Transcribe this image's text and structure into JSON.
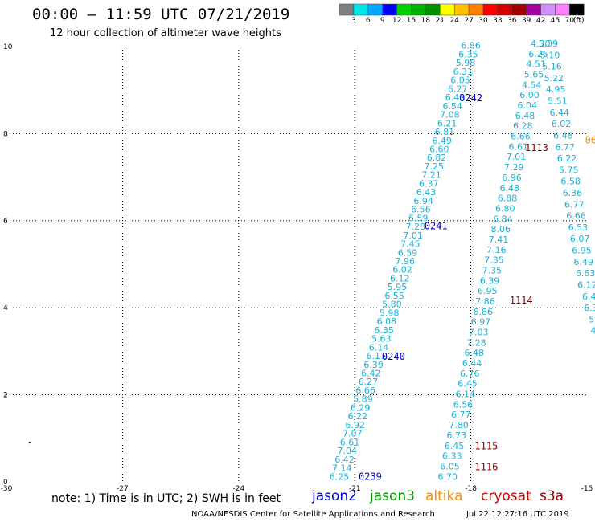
{
  "header": {
    "title": "00:00 – 11:59 UTC 07/21/2019",
    "subtitle": "12 hour collection of altimeter wave heights"
  },
  "colorbar": {
    "colors": [
      "#7f7f7f",
      "#00e6e6",
      "#00a6ff",
      "#0000ff",
      "#00d000",
      "#00b000",
      "#008f00",
      "#ffff00",
      "#ffc000",
      "#ff8000",
      "#ff0000",
      "#d00000",
      "#a00000",
      "#a000a0",
      "#d090ff",
      "#ff80ff",
      "#000000"
    ],
    "labels": [
      "3",
      "6",
      "9",
      "12",
      "15",
      "18",
      "21",
      "24",
      "27",
      "30",
      "33",
      "36",
      "39",
      "42",
      "45",
      "70"
    ],
    "unit": "(ft)"
  },
  "footer": {
    "note": "note: 1) Time is in UTC; 2) SWH is in feet",
    "satellites": [
      {
        "name": "jason2",
        "color": "#0000c8"
      },
      {
        "name": "jason3",
        "color": "#009600"
      },
      {
        "name": "altika",
        "color": "#ff8c00"
      },
      {
        "name": "cryosat",
        "color": "#c80000"
      },
      {
        "name": "s3a",
        "color": "#8b0000"
      }
    ],
    "credit": "NOAA/NESDIS Center for Satellite Applications and Research",
    "timestamp": "Jul 22 12:27:16 UTC 2019"
  },
  "chart_data": {
    "type": "scatter",
    "xlim": [
      -30,
      -15
    ],
    "ylim": [
      0,
      10
    ],
    "x_ticks": [
      "-30",
      "-27",
      "-24",
      "-21",
      "-18",
      "-15"
    ],
    "y_ticks": [
      "0",
      "2",
      "4",
      "6",
      "8",
      "10"
    ],
    "grid": true,
    "point_color": "#1ab0d8",
    "tracks": [
      {
        "start": [
          -21.4,
          0.05
        ],
        "end": [
          -18.0,
          9.95
        ],
        "values": [
          "6.25",
          "7.14",
          "6.42",
          "7.04",
          "6.61",
          "7.07",
          "6.92",
          "6.22",
          "6.29",
          "5.89",
          "6.66",
          "6.27",
          "6.42",
          "6.39",
          "6.11",
          "6.14",
          "5.63",
          "6.35",
          "6.08",
          "5.98",
          "5.80",
          "6.55",
          "5.95",
          "6.12",
          "6.02",
          "7.96",
          "6.59",
          "7.45",
          "7.01",
          "7.28",
          "6.59",
          "6.56",
          "6.94",
          "6.43",
          "6.37",
          "7.21",
          "7.25",
          "6.82",
          "6.60",
          "6.49",
          "6.81",
          "6.21",
          "7.08",
          "6.54",
          "6.43",
          "6.27",
          "6.05",
          "6.31",
          "5.98",
          "6.35",
          "6.86"
        ]
      },
      {
        "start": [
          -18.6,
          0.05
        ],
        "end": [
          -16.2,
          10.0
        ],
        "values": [
          "6.70",
          "6.05",
          "6.33",
          "6.45",
          "6.73",
          "7.80",
          "6.77",
          "6.56",
          "6.14",
          "6.45",
          "6.76",
          "6.44",
          "6.48",
          "7.28",
          "7.03",
          "6.97",
          "6.86",
          "7.86",
          "6.95",
          "6.39",
          "7.35",
          "7.35",
          "7.16",
          "7.41",
          "8.06",
          "6.84",
          "6.80",
          "6.88",
          "6.48",
          "6.96",
          "7.29",
          "7.01",
          "6.61",
          "6.66",
          "6.28",
          "6.48",
          "6.04",
          "6.00",
          "4.54",
          "5.65",
          "4.51",
          "6.25",
          "4.30"
        ]
      },
      {
        "start": [
          -16.0,
          10.0
        ],
        "end": [
          -14.8,
          3.4
        ],
        "values": [
          "5.09",
          "5.10",
          "5.16",
          "5.22",
          "4.95",
          "5.51",
          "6.44",
          "6.02",
          "6.48",
          "6.77",
          "6.22",
          "5.75",
          "6.58",
          "6.36",
          "6.77",
          "6.66",
          "6.53",
          "6.07",
          "6.95",
          "6.49",
          "6.63",
          "6.12",
          "6.4",
          "6.3",
          "5.",
          "4."
        ]
      }
    ],
    "pass_labels": [
      {
        "text": "0239",
        "x": -20.9,
        "y": 0.05,
        "color": "#0000c8"
      },
      {
        "text": "0240",
        "x": -20.3,
        "y": 2.8,
        "color": "#0000c8"
      },
      {
        "text": "0241",
        "x": -19.2,
        "y": 5.8,
        "color": "#0000c8"
      },
      {
        "text": "0242",
        "x": -18.3,
        "y": 8.75,
        "color": "#0000c8"
      },
      {
        "text": "1113",
        "x": -16.6,
        "y": 7.6,
        "color": "#8b0000"
      },
      {
        "text": "1114",
        "x": -17.0,
        "y": 4.1,
        "color": "#8b0000"
      },
      {
        "text": "1115",
        "x": -17.9,
        "y": 0.75,
        "color": "#8b0000"
      },
      {
        "text": "1116",
        "x": -17.9,
        "y": 0.27,
        "color": "#8b0000"
      },
      {
        "text": "06",
        "x": -15.05,
        "y": 7.78,
        "color": "#ff8c00"
      }
    ],
    "stray_point": [
      -29.4,
      0.9
    ]
  }
}
